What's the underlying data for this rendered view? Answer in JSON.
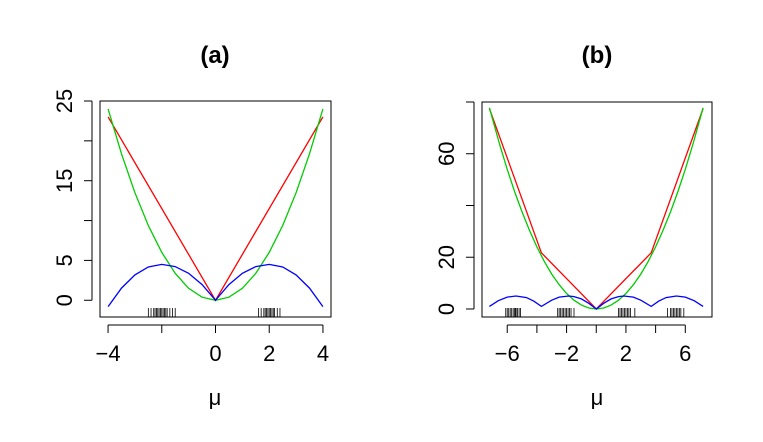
{
  "chart_data": [
    {
      "type": "line",
      "title": "(a)",
      "xlabel": "μ",
      "ylabel": "",
      "xlim": [
        -4.3,
        4.3
      ],
      "ylim": [
        -2.1,
        25
      ],
      "x_ticks": [
        -4,
        -2,
        0,
        2,
        4
      ],
      "x_tick_labels": [
        "-4",
        "",
        "0",
        "2",
        "4"
      ],
      "y_ticks": [
        0,
        5,
        10,
        15,
        20,
        25
      ],
      "y_tick_labels": [
        "0",
        "5",
        "",
        "15",
        "",
        "25"
      ],
      "grid": false,
      "series": [
        {
          "color": "#ff0000",
          "x": [
            -4,
            0,
            4
          ],
          "y": [
            23,
            0,
            23
          ]
        },
        {
          "color": "#00cc00",
          "x": [
            -4,
            -3.5,
            -3,
            -2.5,
            -2,
            -1.5,
            -1,
            -0.5,
            0,
            0.5,
            1,
            1.5,
            2,
            2.5,
            3,
            3.5,
            4
          ],
          "y": [
            24,
            18.38,
            13.5,
            9.38,
            6,
            3.38,
            1.5,
            0.38,
            0,
            0.38,
            1.5,
            3.38,
            6,
            9.38,
            13.5,
            18.38,
            24
          ]
        },
        {
          "color": "#0000ff",
          "x": [
            -4,
            -3.5,
            -3,
            -2.5,
            -2,
            -1.5,
            -1,
            -0.5,
            0,
            0.5,
            1,
            1.5,
            2,
            2.5,
            3,
            3.5,
            4
          ],
          "y": [
            -0.8,
            1.52,
            3.18,
            4.17,
            4.5,
            4.22,
            3.38,
            1.97,
            0,
            1.97,
            3.38,
            4.22,
            4.5,
            4.17,
            3.18,
            1.52,
            -0.8
          ]
        }
      ],
      "rug": [
        -2.5,
        -2.4,
        -2.3,
        -2.25,
        -2.2,
        -2.15,
        -2.1,
        -2.05,
        -2,
        -1.95,
        -1.9,
        -1.85,
        -1.8,
        -1.7,
        -1.6,
        -1.5,
        1.6,
        1.7,
        1.8,
        1.85,
        1.9,
        1.95,
        2,
        2.05,
        2.1,
        2.15,
        2.2,
        2.3,
        2.4
      ]
    },
    {
      "type": "line",
      "title": "(b)",
      "xlabel": "μ",
      "ylabel": "",
      "xlim": [
        -7.7,
        7.8
      ],
      "ylim": [
        -3.1,
        80
      ],
      "x_ticks": [
        -6,
        -4,
        -2,
        0,
        2,
        4,
        6
      ],
      "x_tick_labels": [
        "-6",
        "",
        "-2",
        "",
        "2",
        "",
        "6"
      ],
      "y_ticks": [
        0,
        20,
        40,
        60,
        80
      ],
      "y_tick_labels": [
        "0",
        "20",
        "",
        "60",
        ""
      ],
      "grid": false,
      "series": [
        {
          "color": "#ff0000",
          "x": [
            -7.2,
            -3.7,
            0,
            3.7,
            7.2
          ],
          "y": [
            77.5,
            21.7,
            0,
            21.7,
            77.5
          ]
        },
        {
          "color": "#00cc00",
          "x": [
            -7.2,
            -6.5,
            -6,
            -5.5,
            -5,
            -4.5,
            -4,
            -3.5,
            -3,
            -2.5,
            -2,
            -1.5,
            -1,
            -0.5,
            0,
            0.5,
            1,
            1.5,
            2,
            2.5,
            3,
            3.5,
            4,
            4.5,
            5,
            5.5,
            6,
            6.5,
            7.2
          ],
          "y": [
            77.76,
            63.38,
            54,
            45.38,
            37.5,
            30.38,
            24,
            18.38,
            13.5,
            9.38,
            6,
            3.38,
            1.5,
            0.38,
            0,
            0.38,
            1.5,
            3.38,
            6,
            9.38,
            13.5,
            18.38,
            24,
            30.38,
            37.5,
            45.38,
            54,
            63.38,
            77.76
          ]
        },
        {
          "color": "#0000ff",
          "x": [
            -7.2,
            -6.6,
            -6,
            -5.4,
            -4.7,
            -4.2,
            -3.7,
            -3,
            -2.5,
            -1.85,
            -1.5,
            -1,
            -0.5,
            0,
            0.5,
            1,
            1.5,
            1.85,
            2.5,
            3,
            3.7,
            4.2,
            4.7,
            5.4,
            6,
            6.6,
            7.2
          ],
          "y": [
            1,
            3.2,
            4.6,
            5,
            4.4,
            3,
            1,
            3.4,
            4.6,
            5,
            4.8,
            3.9,
            2.2,
            0,
            2.2,
            3.9,
            4.8,
            5,
            4.6,
            3.4,
            1,
            3,
            4.4,
            5,
            4.6,
            3.2,
            1
          ]
        }
      ],
      "rug": [
        -6.1,
        -6,
        -5.9,
        -5.8,
        -5.7,
        -5.6,
        -5.5,
        -5.45,
        -5.4,
        -5.3,
        -5.2,
        -5.1,
        -2.6,
        -2.5,
        -2.4,
        -2.3,
        -2.2,
        -2.1,
        -2,
        -1.9,
        -1.8,
        -1.7,
        -1.5,
        1.5,
        1.6,
        1.7,
        1.8,
        1.9,
        2,
        2.1,
        2.2,
        2.3,
        2.6,
        4.8,
        5,
        5.1,
        5.2,
        5.3,
        5.4,
        5.5,
        5.6,
        5.7,
        5.9
      ]
    }
  ]
}
